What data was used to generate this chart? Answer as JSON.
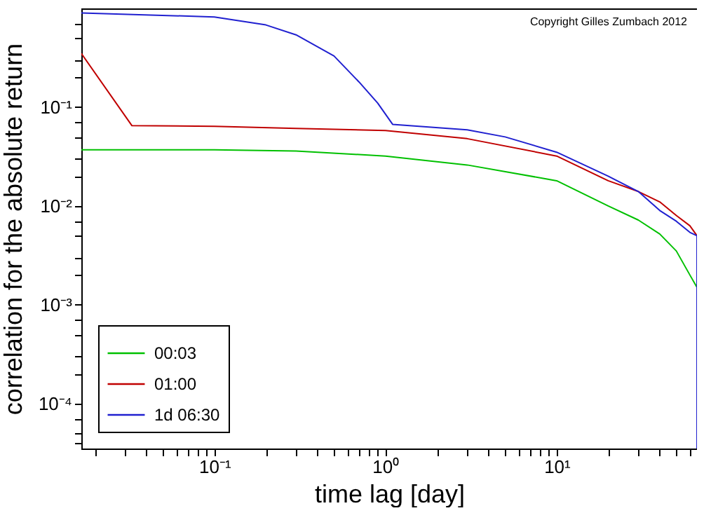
{
  "chart_data": {
    "type": "line",
    "xlabel": "time lag  [day]",
    "ylabel": "correlation for the absolute return",
    "annotations": [
      "Copyright Gilles Zumbach 2012"
    ],
    "log": "xy",
    "grid": false,
    "legend": "bottom left",
    "xlim": [
      0.0167,
      66
    ],
    "ylim": [
      3.5e-05,
      1
    ],
    "xticks": [
      {
        "value": 0.02,
        "label": null
      },
      {
        "value": 0.03,
        "label": null
      },
      {
        "value": 0.04,
        "label": null
      },
      {
        "value": 0.05,
        "label": null
      },
      {
        "value": 0.06,
        "label": null
      },
      {
        "value": 0.07,
        "label": null
      },
      {
        "value": 0.08,
        "label": null
      },
      {
        "value": 0.09,
        "label": null
      },
      {
        "value": 0.1,
        "label": "10⁻¹"
      },
      {
        "value": 0.2,
        "label": null
      },
      {
        "value": 0.3,
        "label": null
      },
      {
        "value": 0.4,
        "label": null
      },
      {
        "value": 0.5,
        "label": null
      },
      {
        "value": 0.6,
        "label": null
      },
      {
        "value": 0.7,
        "label": null
      },
      {
        "value": 0.8,
        "label": null
      },
      {
        "value": 0.9,
        "label": null
      },
      {
        "value": 1,
        "label": "10⁰"
      },
      {
        "value": 2,
        "label": null
      },
      {
        "value": 3,
        "label": null
      },
      {
        "value": 4,
        "label": null
      },
      {
        "value": 5,
        "label": null
      },
      {
        "value": 6,
        "label": null
      },
      {
        "value": 7,
        "label": null
      },
      {
        "value": 8,
        "label": null
      },
      {
        "value": 9,
        "label": null
      },
      {
        "value": 10,
        "label": "10¹"
      },
      {
        "value": 20,
        "label": null
      },
      {
        "value": 30,
        "label": null
      },
      {
        "value": 40,
        "label": null
      },
      {
        "value": 50,
        "label": null
      },
      {
        "value": 60,
        "label": null
      }
    ],
    "yticks": [
      {
        "value": 4e-05,
        "label": null
      },
      {
        "value": 5e-05,
        "label": null
      },
      {
        "value": 7e-05,
        "label": null
      },
      {
        "value": 0.0001,
        "label": "10⁻⁴"
      },
      {
        "value": 0.0002,
        "label": null
      },
      {
        "value": 0.0003,
        "label": null
      },
      {
        "value": 0.0005,
        "label": null
      },
      {
        "value": 0.0007,
        "label": null
      },
      {
        "value": 0.001,
        "label": "10⁻³"
      },
      {
        "value": 0.002,
        "label": null
      },
      {
        "value": 0.003,
        "label": null
      },
      {
        "value": 0.005,
        "label": null
      },
      {
        "value": 0.007,
        "label": null
      },
      {
        "value": 0.01,
        "label": "10⁻²"
      },
      {
        "value": 0.02,
        "label": null
      },
      {
        "value": 0.03,
        "label": null
      },
      {
        "value": 0.05,
        "label": null
      },
      {
        "value": 0.07,
        "label": null
      },
      {
        "value": 0.1,
        "label": "10⁻¹"
      },
      {
        "value": 0.2,
        "label": null
      },
      {
        "value": 0.3,
        "label": null
      },
      {
        "value": 0.5,
        "label": null
      },
      {
        "value": 0.7,
        "label": null
      }
    ],
    "series": [
      {
        "name": "00:03",
        "color": "#00c000",
        "x": [
          0.0167,
          0.05,
          0.1,
          0.3,
          1,
          3,
          10,
          20,
          30,
          40,
          50,
          60,
          66
        ],
        "values": [
          0.037,
          0.037,
          0.037,
          0.036,
          0.032,
          0.026,
          0.018,
          0.01,
          0.0072,
          0.0052,
          0.0035,
          0.002,
          0.0015
        ]
      },
      {
        "name": "01:00",
        "color": "#c00000",
        "x": [
          0.0167,
          0.033,
          0.1,
          0.3,
          1,
          3,
          10,
          20,
          30,
          40,
          50,
          60,
          66
        ],
        "values": [
          0.35,
          0.065,
          0.064,
          0.061,
          0.058,
          0.048,
          0.032,
          0.018,
          0.014,
          0.011,
          0.008,
          0.0063,
          0.005
        ]
      },
      {
        "name": "1d 06:30",
        "color": "#2020d0",
        "x": [
          0.0167,
          0.1,
          0.2,
          0.3,
          0.5,
          0.7,
          0.9,
          1.1,
          3,
          5,
          10,
          20,
          30,
          40,
          50,
          60,
          66,
          66
        ],
        "values": [
          0.9,
          0.82,
          0.68,
          0.54,
          0.33,
          0.18,
          0.11,
          0.067,
          0.059,
          0.05,
          0.035,
          0.02,
          0.014,
          0.009,
          0.007,
          0.0054,
          0.005,
          3.5e-05
        ]
      }
    ]
  }
}
